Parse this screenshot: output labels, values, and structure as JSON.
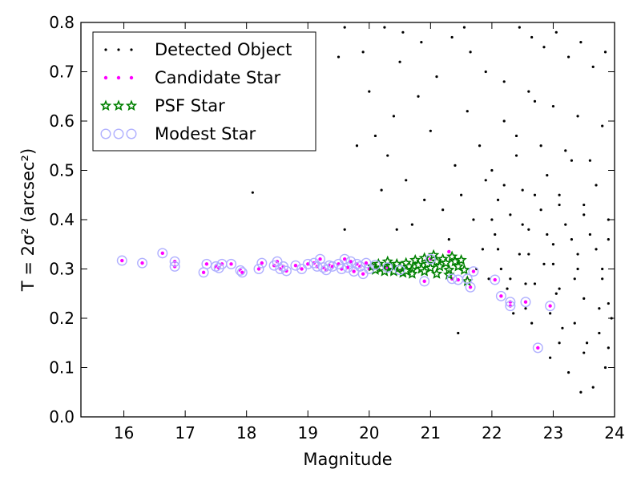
{
  "chart_data": {
    "type": "scatter",
    "xlabel": "Magnitude",
    "ylabel": "T = 2σ² (arcsec²)",
    "xlim": [
      15.3,
      24.0
    ],
    "ylim": [
      0.0,
      0.8
    ],
    "xticks": [
      16,
      17,
      18,
      19,
      20,
      21,
      22,
      23,
      24
    ],
    "yticks": [
      0.0,
      0.1,
      0.2,
      0.3,
      0.4,
      0.5,
      0.6,
      0.7,
      0.8
    ],
    "legend_position": "top-left",
    "series": [
      {
        "name": "Detected Object",
        "marker": "dot",
        "color": "#000000",
        "points": [
          [
            18.1,
            0.455
          ],
          [
            19.6,
            0.38
          ],
          [
            19.8,
            0.55
          ],
          [
            19.9,
            0.74
          ],
          [
            20.0,
            0.66
          ],
          [
            19.5,
            0.73
          ],
          [
            19.6,
            0.79
          ],
          [
            20.1,
            0.57
          ],
          [
            20.2,
            0.46
          ],
          [
            20.3,
            0.53
          ],
          [
            20.4,
            0.61
          ],
          [
            20.45,
            0.38
          ],
          [
            20.5,
            0.72
          ],
          [
            20.6,
            0.48
          ],
          [
            20.7,
            0.39
          ],
          [
            20.8,
            0.65
          ],
          [
            20.9,
            0.44
          ],
          [
            21.0,
            0.58
          ],
          [
            21.1,
            0.69
          ],
          [
            21.2,
            0.42
          ],
          [
            21.3,
            0.36
          ],
          [
            21.35,
            0.77
          ],
          [
            21.4,
            0.51
          ],
          [
            21.45,
            0.17
          ],
          [
            21.5,
            0.45
          ],
          [
            21.6,
            0.62
          ],
          [
            21.7,
            0.4
          ],
          [
            21.75,
            0.3
          ],
          [
            21.8,
            0.55
          ],
          [
            21.85,
            0.34
          ],
          [
            21.9,
            0.7
          ],
          [
            21.95,
            0.28
          ],
          [
            22.0,
            0.5
          ],
          [
            22.05,
            0.37
          ],
          [
            22.1,
            0.44
          ],
          [
            22.15,
            0.3
          ],
          [
            22.2,
            0.6
          ],
          [
            22.25,
            0.26
          ],
          [
            22.3,
            0.41
          ],
          [
            22.35,
            0.21
          ],
          [
            22.4,
            0.53
          ],
          [
            22.45,
            0.33
          ],
          [
            22.5,
            0.46
          ],
          [
            22.55,
            0.27
          ],
          [
            22.6,
            0.38
          ],
          [
            22.65,
            0.19
          ],
          [
            22.7,
            0.64
          ],
          [
            22.75,
            0.14
          ],
          [
            22.8,
            0.42
          ],
          [
            22.85,
            0.31
          ],
          [
            22.9,
            0.49
          ],
          [
            22.95,
            0.12
          ],
          [
            23.0,
            0.35
          ],
          [
            23.05,
            0.25
          ],
          [
            23.1,
            0.45
          ],
          [
            23.15,
            0.18
          ],
          [
            23.2,
            0.39
          ],
          [
            23.25,
            0.09
          ],
          [
            23.3,
            0.52
          ],
          [
            23.35,
            0.28
          ],
          [
            23.4,
            0.33
          ],
          [
            23.45,
            0.05
          ],
          [
            23.5,
            0.43
          ],
          [
            23.55,
            0.15
          ],
          [
            23.6,
            0.37
          ],
          [
            23.65,
            0.06
          ],
          [
            23.7,
            0.47
          ],
          [
            23.75,
            0.22
          ],
          [
            23.8,
            0.3
          ],
          [
            23.85,
            0.1
          ],
          [
            23.9,
            0.4
          ],
          [
            23.95,
            0.2
          ],
          [
            20.25,
            0.79
          ],
          [
            20.55,
            0.78
          ],
          [
            20.85,
            0.76
          ],
          [
            21.55,
            0.79
          ],
          [
            21.65,
            0.74
          ],
          [
            22.45,
            0.79
          ],
          [
            22.65,
            0.77
          ],
          [
            22.85,
            0.75
          ],
          [
            23.05,
            0.78
          ],
          [
            23.25,
            0.73
          ],
          [
            23.45,
            0.76
          ],
          [
            23.65,
            0.71
          ],
          [
            23.85,
            0.74
          ],
          [
            22.2,
            0.68
          ],
          [
            22.6,
            0.66
          ],
          [
            23.0,
            0.63
          ],
          [
            23.4,
            0.61
          ],
          [
            23.8,
            0.59
          ],
          [
            22.4,
            0.57
          ],
          [
            22.8,
            0.55
          ],
          [
            23.2,
            0.54
          ],
          [
            23.6,
            0.52
          ],
          [
            21.9,
            0.48
          ],
          [
            22.2,
            0.47
          ],
          [
            22.7,
            0.45
          ],
          [
            23.1,
            0.43
          ],
          [
            23.5,
            0.41
          ],
          [
            23.9,
            0.36
          ],
          [
            22.0,
            0.4
          ],
          [
            22.5,
            0.39
          ],
          [
            22.9,
            0.37
          ],
          [
            23.3,
            0.36
          ],
          [
            23.7,
            0.34
          ],
          [
            22.1,
            0.34
          ],
          [
            22.6,
            0.33
          ],
          [
            23.0,
            0.31
          ],
          [
            23.4,
            0.3
          ],
          [
            23.8,
            0.28
          ],
          [
            22.3,
            0.28
          ],
          [
            22.7,
            0.27
          ],
          [
            23.1,
            0.26
          ],
          [
            23.5,
            0.24
          ],
          [
            23.9,
            0.23
          ],
          [
            22.55,
            0.22
          ],
          [
            22.95,
            0.21
          ],
          [
            23.35,
            0.19
          ],
          [
            23.75,
            0.17
          ],
          [
            23.1,
            0.15
          ],
          [
            23.5,
            0.13
          ],
          [
            23.9,
            0.14
          ]
        ]
      },
      {
        "name": "Candidate Star",
        "marker": "circle",
        "color": "#ff00ff",
        "points": [
          [
            15.97,
            0.317
          ],
          [
            16.3,
            0.312
          ],
          [
            16.63,
            0.332
          ],
          [
            16.83,
            0.315
          ],
          [
            16.83,
            0.305
          ],
          [
            17.3,
            0.293
          ],
          [
            17.35,
            0.31
          ],
          [
            17.5,
            0.305
          ],
          [
            17.55,
            0.302
          ],
          [
            17.6,
            0.31
          ],
          [
            17.75,
            0.31
          ],
          [
            17.9,
            0.297
          ],
          [
            17.93,
            0.293
          ],
          [
            18.2,
            0.3
          ],
          [
            18.25,
            0.312
          ],
          [
            18.45,
            0.307
          ],
          [
            18.5,
            0.315
          ],
          [
            18.55,
            0.3
          ],
          [
            18.6,
            0.305
          ],
          [
            18.65,
            0.296
          ],
          [
            18.8,
            0.307
          ],
          [
            18.9,
            0.3
          ],
          [
            19.0,
            0.31
          ],
          [
            19.1,
            0.312
          ],
          [
            19.15,
            0.305
          ],
          [
            19.2,
            0.32
          ],
          [
            19.25,
            0.303
          ],
          [
            19.3,
            0.298
          ],
          [
            19.35,
            0.307
          ],
          [
            19.4,
            0.305
          ],
          [
            19.5,
            0.31
          ],
          [
            19.55,
            0.3
          ],
          [
            19.6,
            0.32
          ],
          [
            19.65,
            0.303
          ],
          [
            19.7,
            0.315
          ],
          [
            19.75,
            0.295
          ],
          [
            19.8,
            0.31
          ],
          [
            19.85,
            0.305
          ],
          [
            19.9,
            0.29
          ],
          [
            19.95,
            0.312
          ],
          [
            20.0,
            0.3
          ],
          [
            20.1,
            0.308
          ],
          [
            20.3,
            0.303
          ],
          [
            20.5,
            0.298
          ],
          [
            20.9,
            0.275
          ],
          [
            21.0,
            0.32
          ],
          [
            21.3,
            0.335
          ],
          [
            21.35,
            0.28
          ],
          [
            21.45,
            0.278
          ],
          [
            21.6,
            0.28
          ],
          [
            21.65,
            0.263
          ],
          [
            21.7,
            0.295
          ],
          [
            22.05,
            0.278
          ],
          [
            22.15,
            0.245
          ],
          [
            22.3,
            0.233
          ],
          [
            22.3,
            0.225
          ],
          [
            22.55,
            0.233
          ],
          [
            22.75,
            0.14
          ],
          [
            22.95,
            0.225
          ]
        ]
      },
      {
        "name": "PSF Star",
        "marker": "star",
        "color": "#008000",
        "points": [
          [
            20.05,
            0.305
          ],
          [
            20.1,
            0.298
          ],
          [
            20.15,
            0.31
          ],
          [
            20.2,
            0.302
          ],
          [
            20.25,
            0.295
          ],
          [
            20.3,
            0.315
          ],
          [
            20.35,
            0.305
          ],
          [
            20.4,
            0.298
          ],
          [
            20.45,
            0.31
          ],
          [
            20.5,
            0.303
          ],
          [
            20.55,
            0.292
          ],
          [
            20.6,
            0.312
          ],
          [
            20.65,
            0.305
          ],
          [
            20.7,
            0.298
          ],
          [
            20.75,
            0.318
          ],
          [
            20.8,
            0.308
          ],
          [
            20.85,
            0.3
          ],
          [
            20.9,
            0.322
          ],
          [
            20.95,
            0.31
          ],
          [
            21.0,
            0.302
          ],
          [
            21.05,
            0.328
          ],
          [
            21.1,
            0.315
          ],
          [
            21.15,
            0.305
          ],
          [
            21.2,
            0.32
          ],
          [
            21.25,
            0.312
          ],
          [
            21.3,
            0.298
          ],
          [
            21.35,
            0.325
          ],
          [
            21.4,
            0.315
          ],
          [
            21.45,
            0.305
          ],
          [
            21.5,
            0.318
          ],
          [
            21.55,
            0.298
          ],
          [
            21.6,
            0.275
          ],
          [
            20.7,
            0.29
          ],
          [
            20.9,
            0.295
          ],
          [
            21.1,
            0.29
          ],
          [
            21.3,
            0.288
          ],
          [
            20.4,
            0.295
          ],
          [
            20.6,
            0.296
          ]
        ]
      },
      {
        "name": "Modest Star",
        "marker": "ring",
        "color": "#b0b0ff",
        "points": [
          [
            15.97,
            0.317
          ],
          [
            16.3,
            0.312
          ],
          [
            16.63,
            0.332
          ],
          [
            16.83,
            0.315
          ],
          [
            16.83,
            0.305
          ],
          [
            17.3,
            0.293
          ],
          [
            17.35,
            0.31
          ],
          [
            17.5,
            0.305
          ],
          [
            17.55,
            0.302
          ],
          [
            17.6,
            0.31
          ],
          [
            17.75,
            0.31
          ],
          [
            17.9,
            0.297
          ],
          [
            17.93,
            0.293
          ],
          [
            18.2,
            0.3
          ],
          [
            18.25,
            0.312
          ],
          [
            18.45,
            0.307
          ],
          [
            18.5,
            0.315
          ],
          [
            18.55,
            0.3
          ],
          [
            18.6,
            0.305
          ],
          [
            18.65,
            0.296
          ],
          [
            18.8,
            0.307
          ],
          [
            18.9,
            0.3
          ],
          [
            19.0,
            0.31
          ],
          [
            19.1,
            0.312
          ],
          [
            19.15,
            0.305
          ],
          [
            19.2,
            0.32
          ],
          [
            19.25,
            0.303
          ],
          [
            19.3,
            0.298
          ],
          [
            19.35,
            0.307
          ],
          [
            19.4,
            0.305
          ],
          [
            19.5,
            0.31
          ],
          [
            19.55,
            0.3
          ],
          [
            19.6,
            0.32
          ],
          [
            19.65,
            0.303
          ],
          [
            19.7,
            0.315
          ],
          [
            19.75,
            0.295
          ],
          [
            19.8,
            0.31
          ],
          [
            19.85,
            0.305
          ],
          [
            19.9,
            0.29
          ],
          [
            19.95,
            0.312
          ],
          [
            20.0,
            0.3
          ],
          [
            20.1,
            0.308
          ],
          [
            20.3,
            0.303
          ],
          [
            20.5,
            0.298
          ],
          [
            20.9,
            0.275
          ],
          [
            21.0,
            0.32
          ],
          [
            21.35,
            0.28
          ],
          [
            21.45,
            0.278
          ],
          [
            21.6,
            0.28
          ],
          [
            21.65,
            0.263
          ],
          [
            21.7,
            0.295
          ],
          [
            22.05,
            0.278
          ],
          [
            22.15,
            0.245
          ],
          [
            22.3,
            0.233
          ],
          [
            22.3,
            0.225
          ],
          [
            22.55,
            0.233
          ],
          [
            22.75,
            0.14
          ],
          [
            22.95,
            0.225
          ]
        ]
      }
    ]
  }
}
